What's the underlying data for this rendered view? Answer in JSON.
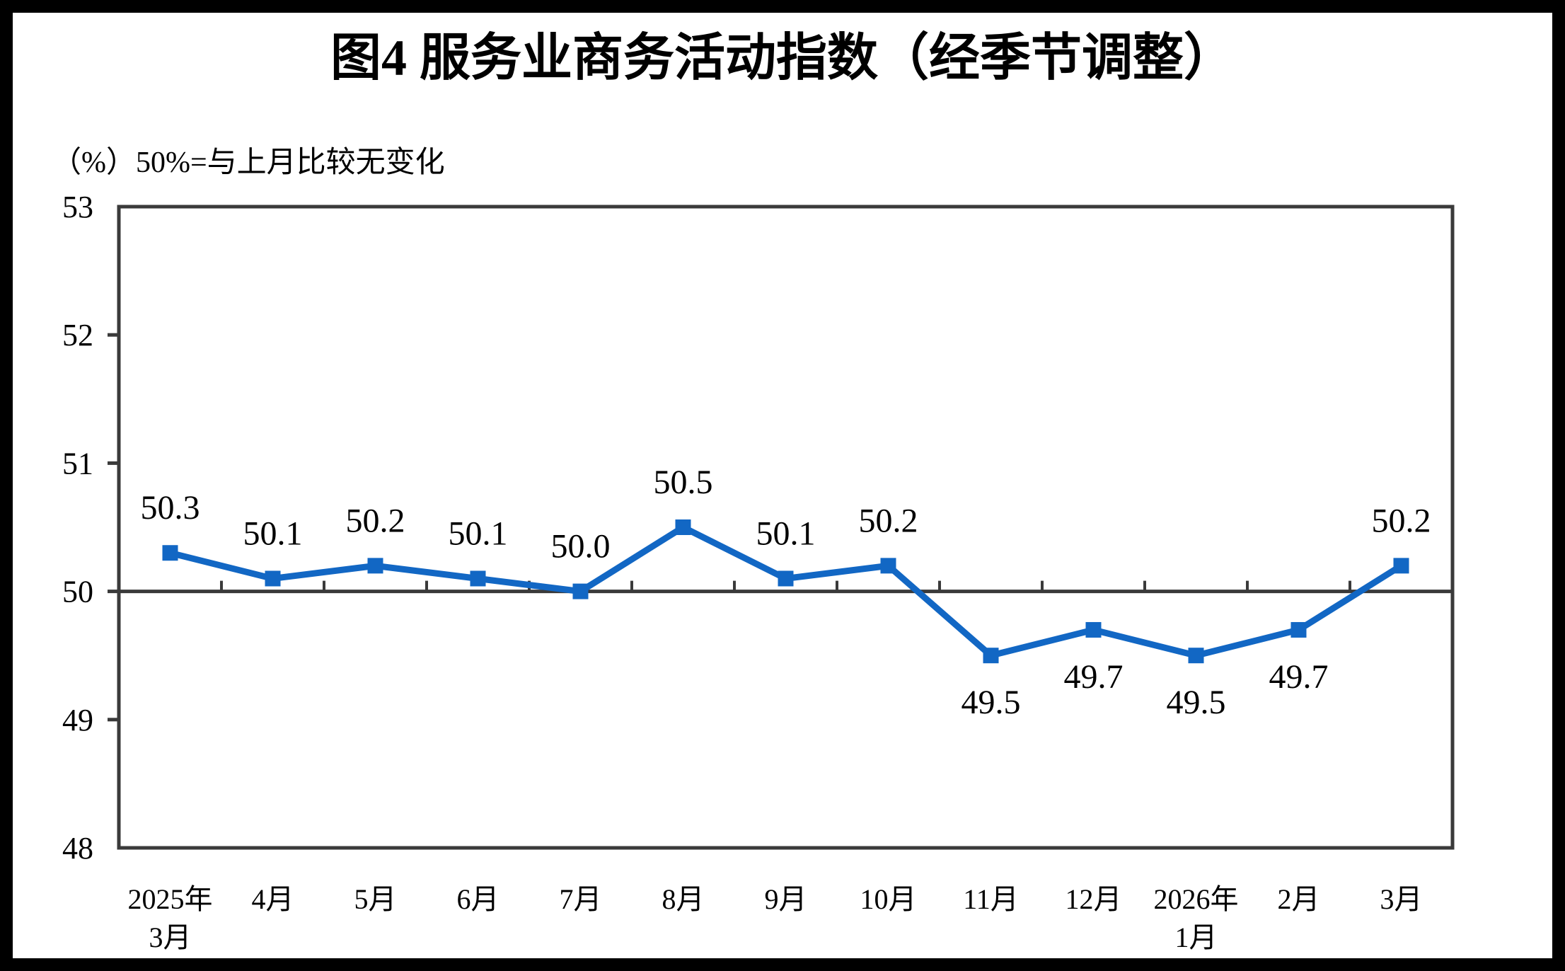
{
  "colors": {
    "line": "#1267C4",
    "axis": "#3A3A3A",
    "text": "#000000",
    "background": "#FFFFFF",
    "frame": "#000000"
  },
  "chart_data": {
    "type": "line",
    "title": "图4  服务业商务活动指数（经季节调整）",
    "subtitle": "（%）50%=与上月比较无变化",
    "categories": [
      "2025年\n3月",
      "4月",
      "5月",
      "6月",
      "7月",
      "8月",
      "9月",
      "10月",
      "11月",
      "12月",
      "2026年\n1月",
      "2月",
      "3月"
    ],
    "series": [
      {
        "name": "服务业商务活动指数",
        "values": [
          50.3,
          50.1,
          50.2,
          50.1,
          50.0,
          50.5,
          50.1,
          50.2,
          49.5,
          49.7,
          49.5,
          49.7,
          50.2
        ]
      }
    ],
    "data_labels": [
      "50.3",
      "50.1",
      "50.2",
      "50.1",
      "50.0",
      "50.5",
      "50.1",
      "50.2",
      "49.5",
      "49.7",
      "49.5",
      "49.7",
      "50.2"
    ],
    "ylim": [
      48,
      53
    ],
    "yticks": [
      48,
      49,
      50,
      51,
      52,
      53
    ],
    "reference_line": 50,
    "grid": false,
    "legend": "none",
    "marker": "square"
  }
}
